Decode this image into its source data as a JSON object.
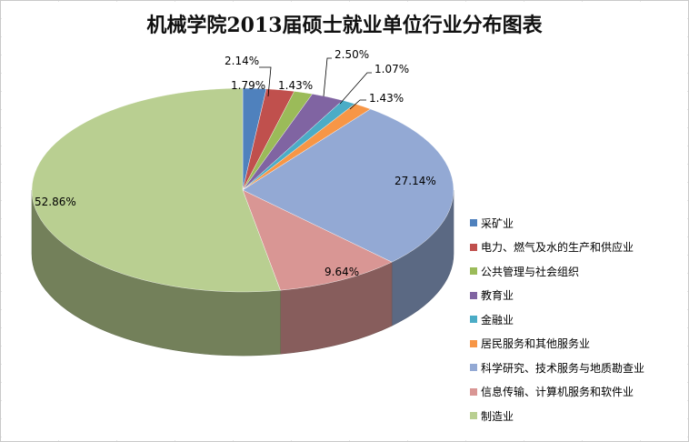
{
  "chart_data": {
    "type": "pie",
    "title": "机械学院2013届硕士就业单位行业分布图表",
    "categories": [
      "采矿业",
      "电力、燃气及水的生产和供应业",
      "公共管理与社会组织",
      "教育业",
      "金融业",
      "居民服务和其他服务业",
      "科学研究、技术服务与地质勘查业",
      "信息传输、计算机服务和软件业",
      "制造业"
    ],
    "values": [
      1.79,
      2.14,
      1.43,
      2.5,
      1.07,
      1.43,
      27.14,
      9.64,
      52.86
    ],
    "value_labels": [
      "1.79%",
      "2.14%",
      "1.43%",
      "2.50%",
      "1.07%",
      "1.43%",
      "27.14%",
      "9.64%",
      "52.86%"
    ],
    "colors": [
      "#4F81BD",
      "#C0504D",
      "#9BBB59",
      "#8064A2",
      "#4BACC6",
      "#F79646",
      "#93A9D4",
      "#D99694",
      "#B9CF91"
    ],
    "legend_position": "right",
    "style": "3d-pie"
  }
}
